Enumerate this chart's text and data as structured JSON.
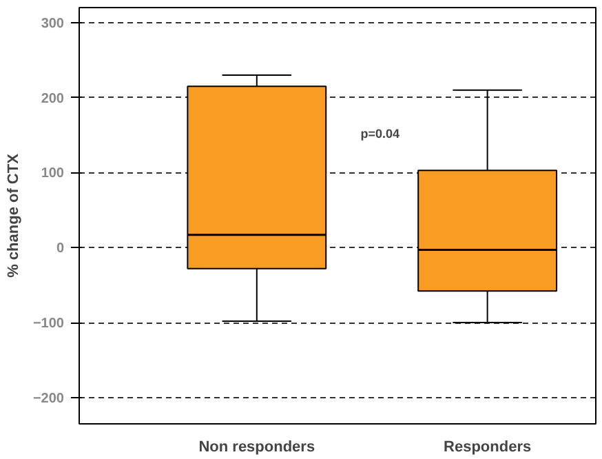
{
  "chart_data": {
    "type": "box",
    "categories": [
      "Non responders",
      "Responders"
    ],
    "ylabel": "% change of CTX",
    "boxes": [
      {
        "low": -98,
        "q1": -28,
        "median": 17,
        "q3": 215,
        "high": 230
      },
      {
        "low": -100,
        "q1": -58,
        "median": -3,
        "q3": 103,
        "high": 210
      }
    ],
    "color": "#f89c24",
    "ylim": [
      -235,
      320
    ],
    "yticks": [
      -200,
      -100,
      0,
      100,
      200,
      300
    ],
    "grid": "y",
    "annotations": [
      "p=0.04"
    ]
  }
}
